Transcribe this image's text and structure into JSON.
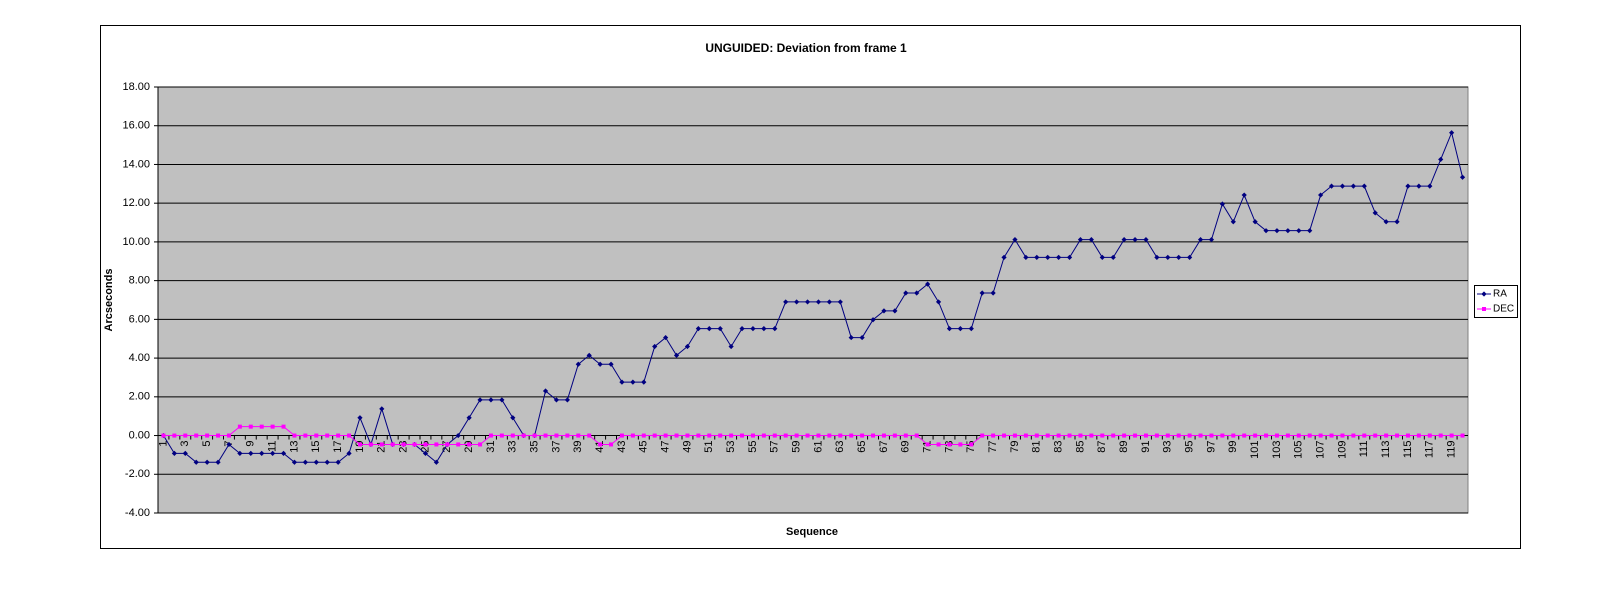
{
  "chart_data": {
    "type": "line",
    "title": "UNGUIDED: Deviation from frame 1",
    "x_label": "Sequence",
    "y_label": "Arcseconds",
    "categories": [
      "1",
      null,
      "3",
      null,
      "5",
      null,
      "7",
      null,
      "9",
      null,
      "11",
      null,
      "13",
      null,
      "15",
      null,
      "17",
      null,
      "19",
      null,
      "21",
      null,
      "23",
      null,
      "25",
      null,
      "27",
      null,
      "29",
      null,
      "31",
      null,
      "33",
      null,
      "35",
      null,
      "37",
      null,
      "39",
      null,
      "41",
      null,
      "43",
      null,
      "45",
      null,
      "47",
      null,
      "49",
      null,
      "51",
      null,
      "53",
      null,
      "55",
      null,
      "57",
      null,
      "59",
      null,
      "61",
      null,
      "63",
      null,
      "65",
      null,
      "67",
      null,
      "69",
      null,
      "71",
      null,
      "73",
      null,
      "75",
      null,
      "77",
      null,
      "79",
      null,
      "81",
      null,
      "83",
      null,
      "85",
      null,
      "87",
      null,
      "89",
      null,
      "91",
      null,
      "93",
      null,
      "95",
      null,
      "97",
      null,
      "99",
      null,
      "101",
      null,
      "103",
      null,
      "105",
      null,
      "107",
      null,
      "109",
      null,
      "111",
      null,
      "113",
      null,
      "115",
      null,
      "117",
      null,
      "119",
      null
    ],
    "series": [
      {
        "name": "RA",
        "color": "#000080",
        "marker": "diamond",
        "values": [
          0,
          -0.92,
          -0.92,
          -1.38,
          -1.38,
          -1.38,
          -0.46,
          -0.92,
          -0.92,
          -0.92,
          -0.92,
          -0.92,
          -1.38,
          -1.38,
          -1.38,
          -1.38,
          -1.38,
          -0.92,
          0.92,
          -0.46,
          1.38,
          -0.46,
          -0.46,
          -0.46,
          -0.92,
          -1.38,
          -0.46,
          0,
          0.92,
          1.84,
          1.84,
          1.84,
          0.92,
          0,
          0,
          2.3,
          1.84,
          1.84,
          3.68,
          4.14,
          3.68,
          3.68,
          2.76,
          2.76,
          2.76,
          4.6,
          5.06,
          4.14,
          4.6,
          5.52,
          5.52,
          5.52,
          4.6,
          5.52,
          5.52,
          5.52,
          5.52,
          6.9,
          6.9,
          6.9,
          6.9,
          6.9,
          6.9,
          5.06,
          5.06,
          5.98,
          6.44,
          6.44,
          7.36,
          7.36,
          7.82,
          6.9,
          5.52,
          5.52,
          5.52,
          7.36,
          7.36,
          9.2,
          10.12,
          9.2,
          9.2,
          9.2,
          9.2,
          9.2,
          10.12,
          10.12,
          9.2,
          9.2,
          10.12,
          10.12,
          10.12,
          9.2,
          9.2,
          9.2,
          9.2,
          10.12,
          10.12,
          11.96,
          11.04,
          12.42,
          11.04,
          10.58,
          10.58,
          10.58,
          10.58,
          10.58,
          12.42,
          12.88,
          12.88,
          12.88,
          12.88,
          11.5,
          11.04,
          11.04,
          12.88,
          12.88,
          12.88,
          14.26,
          15.64,
          13.34
        ]
      },
      {
        "name": "DEC",
        "color": "#ff00ff",
        "marker": "square",
        "values": [
          0,
          0,
          0,
          0,
          0,
          0,
          0,
          0.46,
          0.46,
          0.46,
          0.46,
          0.46,
          0,
          0,
          0,
          0,
          0,
          0,
          -0.46,
          -0.46,
          -0.46,
          -0.46,
          -0.46,
          -0.46,
          -0.46,
          -0.46,
          -0.46,
          -0.46,
          -0.46,
          -0.46,
          0,
          0,
          0,
          0,
          0,
          0,
          0,
          0,
          0,
          0,
          -0.46,
          -0.46,
          0,
          0,
          0,
          0,
          0,
          0,
          0,
          0,
          0,
          0,
          0,
          0,
          0,
          0,
          0,
          0,
          0,
          0,
          0,
          0,
          0,
          0,
          0,
          0,
          0,
          0,
          0,
          0,
          -0.46,
          -0.46,
          -0.46,
          -0.46,
          -0.46,
          0,
          0,
          0,
          0,
          0,
          0,
          0,
          0,
          0,
          0,
          0,
          0,
          0,
          0,
          0,
          0,
          0,
          0,
          0,
          0,
          0,
          0,
          0,
          0,
          0,
          0,
          0,
          0,
          0,
          0,
          0,
          0,
          0,
          0,
          0,
          0,
          0,
          0,
          0,
          0,
          0,
          0,
          0,
          0,
          0
        ]
      }
    ],
    "ylim": [
      -4,
      18
    ],
    "yticks": [
      {
        "value": -4,
        "label": "-4.00"
      },
      {
        "value": -2,
        "label": "-2.00"
      },
      {
        "value": 0,
        "label": "0.00"
      },
      {
        "value": 2,
        "label": "2.00"
      },
      {
        "value": 4,
        "label": "4.00"
      },
      {
        "value": 6,
        "label": "6.00"
      },
      {
        "value": 8,
        "label": "8.00"
      },
      {
        "value": 10,
        "label": "10.00"
      },
      {
        "value": 12,
        "label": "12.00"
      },
      {
        "value": 14,
        "label": "14.00"
      },
      {
        "value": 16,
        "label": "16.00"
      },
      {
        "value": 18,
        "label": "18.00"
      }
    ],
    "grid": true,
    "plot_background": "#c0c0c0",
    "legend": "right"
  }
}
